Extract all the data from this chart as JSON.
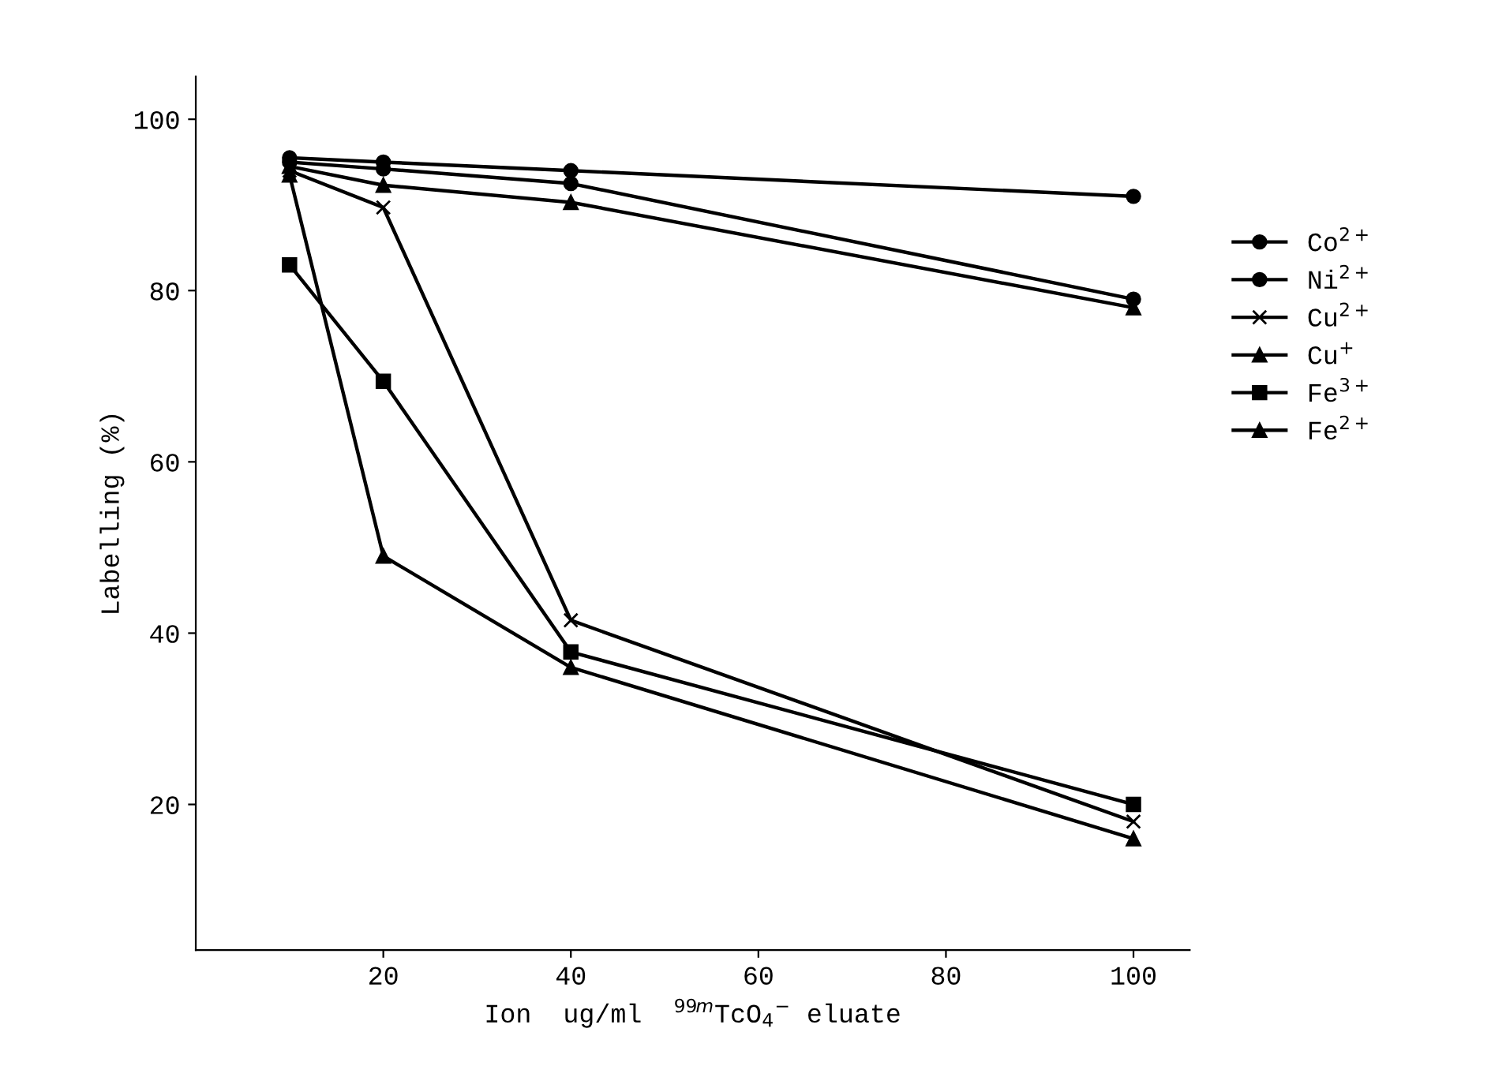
{
  "chart_data": {
    "type": "line",
    "xlabel": "Ion  ug/ml  $^{99m}$TcO$_{4}$$^{−}$ eluate",
    "ylabel": "Labelling (%)",
    "xlim": [
      0,
      106
    ],
    "ylim": [
      3,
      105
    ],
    "xticks": [
      20,
      40,
      60,
      80,
      100
    ],
    "yticks": [
      20,
      40,
      60,
      80,
      100
    ],
    "grid": false,
    "legend": "right",
    "line_style": "solid",
    "series": [
      {
        "name": "Co$^{2+}$",
        "color": "#000000",
        "marker": "circle",
        "x": [
          10,
          20,
          40,
          100
        ],
        "values": [
          95.5,
          95,
          94,
          91
        ]
      },
      {
        "name": "Ni$^{2+}$",
        "color": "#000000",
        "marker": "circle",
        "x": [
          10,
          20,
          40,
          100
        ],
        "values": [
          95,
          94.2,
          92.5,
          79
        ]
      },
      {
        "name": "Cu$^{2+}$",
        "color": "#000000",
        "marker": "cross",
        "x": [
          10,
          20,
          40,
          100
        ],
        "values": [
          94,
          89.7,
          41.5,
          18
        ]
      },
      {
        "name": "Cu$^{+}$",
        "color": "#000000",
        "marker": "triangle",
        "x": [
          10,
          20,
          40,
          100
        ],
        "values": [
          93.5,
          49,
          36,
          16
        ]
      },
      {
        "name": "Fe$^{3+}$",
        "color": "#000000",
        "marker": "square",
        "x": [
          10,
          20,
          40,
          100
        ],
        "values": [
          83,
          69.4,
          37.8,
          20
        ]
      },
      {
        "name": "Fe$^{2+}$",
        "color": "#000000",
        "marker": "triangle",
        "x": [
          10,
          20,
          40,
          100
        ],
        "values": [
          94.5,
          92.3,
          90.3,
          78
        ]
      }
    ]
  }
}
